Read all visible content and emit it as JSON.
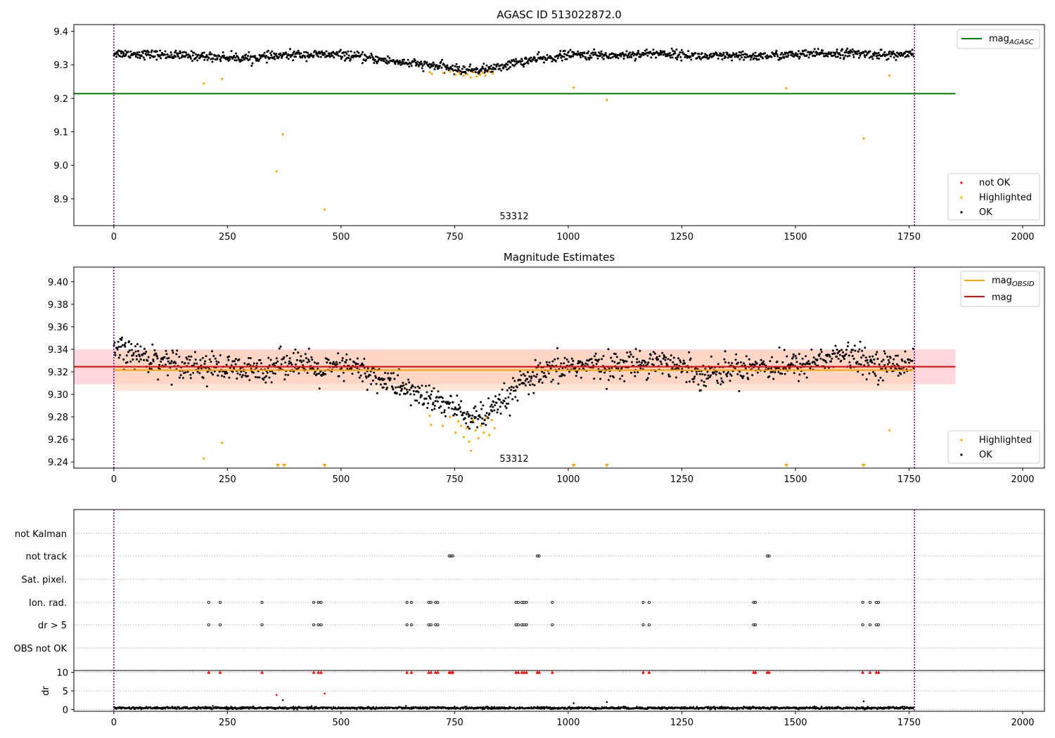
{
  "chart_data": [
    {
      "type": "scatter",
      "title": "AGASC ID 513022872.0",
      "xlim": [
        -88,
        2048
      ],
      "ylim": [
        8.82,
        9.42
      ],
      "xticks": [
        0,
        250,
        500,
        750,
        1000,
        1250,
        1500,
        1750,
        2000
      ],
      "yticks": [
        8.9,
        9.0,
        9.1,
        9.2,
        9.3,
        9.4
      ],
      "obsid_lines": [
        0,
        1762
      ],
      "obsid_label": {
        "text": "53312",
        "x": 880,
        "y": 8.85
      },
      "hlines": [
        {
          "name": "mag_AGASC",
          "y": 9.214,
          "x": [
            -88,
            1852
          ],
          "color": "#008000"
        }
      ],
      "ok_trend": {
        "x": [
          0,
          100,
          200,
          300,
          400,
          500,
          560,
          620,
          680,
          720,
          760,
          800,
          840,
          880,
          920,
          960,
          1000,
          1100,
          1200,
          1300,
          1400,
          1500,
          1600,
          1700,
          1760
        ],
        "y": [
          9.335,
          9.33,
          9.325,
          9.32,
          9.33,
          9.33,
          9.32,
          9.31,
          9.3,
          9.295,
          9.285,
          9.285,
          9.29,
          9.305,
          9.315,
          9.32,
          9.33,
          9.328,
          9.335,
          9.325,
          9.325,
          9.33,
          9.335,
          9.33,
          9.33
        ],
        "scatter": 0.012,
        "n": 1350
      },
      "highlighted": [
        {
          "x": 198,
          "y": 9.244
        },
        {
          "x": 238,
          "y": 9.258
        },
        {
          "x": 358,
          "y": 8.982
        },
        {
          "x": 372,
          "y": 9.092
        },
        {
          "x": 464,
          "y": 8.868
        },
        {
          "x": 1012,
          "y": 9.232
        },
        {
          "x": 1085,
          "y": 9.195
        },
        {
          "x": 1480,
          "y": 9.23
        },
        {
          "x": 1650,
          "y": 9.08
        },
        {
          "x": 1707,
          "y": 9.268
        },
        {
          "x": 695,
          "y": 9.278
        },
        {
          "x": 700,
          "y": 9.273
        },
        {
          "x": 725,
          "y": 9.276
        },
        {
          "x": 740,
          "y": 9.28
        },
        {
          "x": 752,
          "y": 9.27
        },
        {
          "x": 760,
          "y": 9.275
        },
        {
          "x": 770,
          "y": 9.268
        },
        {
          "x": 778,
          "y": 9.272
        },
        {
          "x": 785,
          "y": 9.262
        },
        {
          "x": 792,
          "y": 9.278
        },
        {
          "x": 798,
          "y": 9.265
        },
        {
          "x": 806,
          "y": 9.27
        },
        {
          "x": 812,
          "y": 9.276
        },
        {
          "x": 818,
          "y": 9.268
        },
        {
          "x": 826,
          "y": 9.28
        },
        {
          "x": 834,
          "y": 9.274
        }
      ],
      "legend_top": [
        {
          "label": "mag",
          "sub": "AGASC",
          "color": "#008000"
        }
      ],
      "legend_bottom": [
        {
          "label": "not OK",
          "color": "#ff0000"
        },
        {
          "label": "Highlighted",
          "color": "#ffa500"
        },
        {
          "label": "OK",
          "color": "#000000"
        }
      ]
    },
    {
      "type": "scatter",
      "title": "Magnitude Estimates",
      "xlim": [
        -88,
        2048
      ],
      "ylim": [
        9.2345,
        9.413
      ],
      "xticks": [
        0,
        250,
        500,
        750,
        1000,
        1250,
        1500,
        1750,
        2000
      ],
      "yticks": [
        9.24,
        9.26,
        9.28,
        9.3,
        9.32,
        9.34,
        9.36,
        9.38,
        9.4
      ],
      "obsid_lines": [
        0,
        1762
      ],
      "obsid_label": {
        "text": "53312",
        "x": 880,
        "y": 9.2395
      },
      "bands": [
        {
          "y": [
            9.309,
            9.34
          ],
          "x": [
            -88,
            1852
          ],
          "color": "#ffb6c1"
        },
        {
          "y": [
            9.303,
            9.339
          ],
          "x": [
            0,
            1762
          ],
          "color": "#ffd3b3"
        }
      ],
      "hlines": [
        {
          "name": "mag_OBSID",
          "y": 9.3215,
          "x": [
            0,
            1762
          ],
          "color": "#ffa500"
        },
        {
          "name": "mag",
          "y": 9.3245,
          "x": [
            -88,
            1852
          ],
          "color": "#ff0000"
        }
      ],
      "ok_trend": {
        "x": [
          0,
          100,
          200,
          300,
          400,
          450,
          520,
          580,
          640,
          700,
          740,
          780,
          820,
          860,
          900,
          960,
          1000,
          1100,
          1200,
          1300,
          1400,
          1500,
          1600,
          1700,
          1760
        ],
        "y": [
          9.34,
          9.33,
          9.325,
          9.32,
          9.33,
          9.32,
          9.325,
          9.315,
          9.305,
          9.295,
          9.29,
          9.28,
          9.28,
          9.295,
          9.31,
          9.32,
          9.325,
          9.325,
          9.33,
          9.318,
          9.325,
          9.325,
          9.335,
          9.325,
          9.33
        ],
        "scatter": 0.011,
        "n": 1350
      },
      "highlighted": [
        {
          "x": 198,
          "y": 9.243
        },
        {
          "x": 238,
          "y": 9.257
        },
        {
          "x": 1707,
          "y": 9.268
        },
        {
          "x": 695,
          "y": 9.281
        },
        {
          "x": 698,
          "y": 9.273
        },
        {
          "x": 724,
          "y": 9.272
        },
        {
          "x": 740,
          "y": 9.28
        },
        {
          "x": 752,
          "y": 9.266
        },
        {
          "x": 758,
          "y": 9.276
        },
        {
          "x": 764,
          "y": 9.272
        },
        {
          "x": 770,
          "y": 9.262
        },
        {
          "x": 776,
          "y": 9.27
        },
        {
          "x": 782,
          "y": 9.258
        },
        {
          "x": 786,
          "y": 9.25
        },
        {
          "x": 790,
          "y": 9.277
        },
        {
          "x": 796,
          "y": 9.268
        },
        {
          "x": 802,
          "y": 9.261
        },
        {
          "x": 808,
          "y": 9.272
        },
        {
          "x": 814,
          "y": 9.266
        },
        {
          "x": 820,
          "y": 9.279
        },
        {
          "x": 826,
          "y": 9.264
        },
        {
          "x": 832,
          "y": 9.277
        },
        {
          "x": 838,
          "y": 9.27
        }
      ],
      "out_of_range": [
        361,
        375,
        464,
        1012,
        1085,
        1480,
        1650
      ],
      "legend_top": [
        {
          "label": "mag",
          "sub": "OBSID",
          "color": "#ffa500"
        },
        {
          "label": "mag",
          "sub": "",
          "color": "#ff0000"
        }
      ],
      "legend_bottom": [
        {
          "label": "Highlighted",
          "color": "#ffa500"
        },
        {
          "label": "OK",
          "color": "#000000"
        }
      ]
    },
    {
      "type": "scatter",
      "xlim": [
        -88,
        2048
      ],
      "xticks": [
        0,
        250,
        500,
        750,
        1000,
        1250,
        1500,
        1750,
        2000
      ],
      "obsid_lines": [
        0,
        1762
      ],
      "flag_rows": [
        {
          "label": "not Kalman",
          "x": []
        },
        {
          "label": "not track",
          "x": [
            738,
            742,
            746,
            932,
            936,
            1438,
            1442
          ]
        },
        {
          "label": "Sat. pixel.",
          "x": []
        },
        {
          "label": "Ion. rad.",
          "x": [
            209,
            234,
            326,
            440,
            450,
            456,
            645,
            655,
            693,
            698,
            708,
            713,
            885,
            890,
            898,
            903,
            908,
            965,
            1165,
            1178,
            1408,
            1412,
            1648,
            1664,
            1678,
            1683
          ]
        },
        {
          "label": "dr > 5",
          "x": [
            209,
            234,
            326,
            440,
            450,
            456,
            645,
            655,
            693,
            698,
            708,
            713,
            885,
            890,
            898,
            903,
            908,
            965,
            1165,
            1178,
            1408,
            1412,
            1648,
            1664,
            1678,
            1683
          ]
        },
        {
          "label": "OBS not OK",
          "x": []
        }
      ],
      "dr_ylim": [
        -0.5,
        10.5
      ],
      "dr_yticks": [
        0,
        5,
        10
      ],
      "dr_ylabel": "dr",
      "dr_trend": {
        "x": [
          0,
          1760
        ],
        "y": 0.4,
        "scatter": 0.25,
        "n": 1400
      },
      "dr_outliers": [
        {
          "x": 358,
          "y": 3.9
        },
        {
          "x": 372,
          "y": 2.5
        },
        {
          "x": 464,
          "y": 4.3
        },
        {
          "x": 1012,
          "y": 1.7
        },
        {
          "x": 1085,
          "y": 2.0
        },
        {
          "x": 1650,
          "y": 2.2
        }
      ],
      "dr_clipped": [
        209,
        234,
        326,
        440,
        450,
        456,
        645,
        655,
        693,
        698,
        708,
        713,
        738,
        742,
        746,
        885,
        890,
        898,
        903,
        908,
        932,
        936,
        965,
        1165,
        1178,
        1408,
        1412,
        1438,
        1442,
        1648,
        1664,
        1678,
        1683
      ]
    }
  ]
}
